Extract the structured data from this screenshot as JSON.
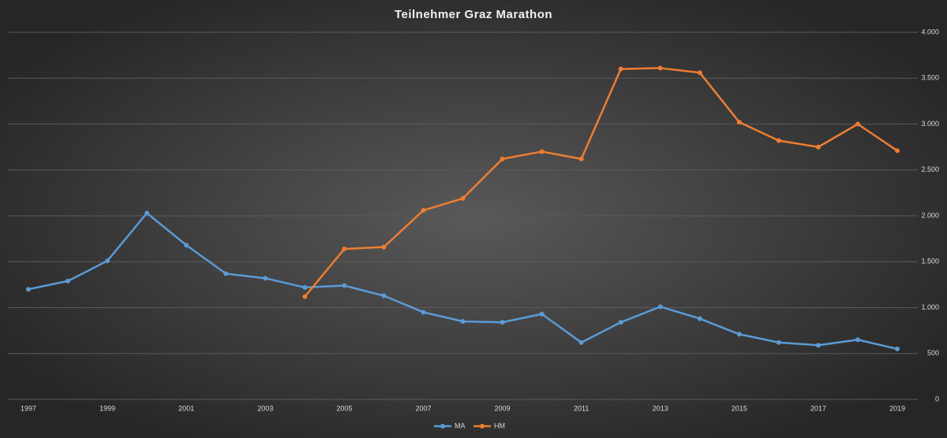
{
  "chart_data": {
    "type": "line",
    "title": "Teilnehmer  Graz  Marathon",
    "x": [
      1997,
      1998,
      1999,
      2000,
      2001,
      2002,
      2003,
      2004,
      2005,
      2006,
      2007,
      2008,
      2009,
      2010,
      2011,
      2012,
      2013,
      2014,
      2015,
      2016,
      2017,
      2018,
      2019
    ],
    "xlim": [
      1997,
      2019
    ],
    "xticks": [
      1997,
      1999,
      2001,
      2003,
      2005,
      2007,
      2009,
      2011,
      2013,
      2015,
      2017,
      2019
    ],
    "ylim": [
      0,
      4000
    ],
    "yticks": [
      0,
      500,
      {
        "value": 1000,
        "label": "1.000"
      },
      {
        "value": 1500,
        "label": "1.500"
      },
      {
        "value": 2000,
        "label": "2.000"
      },
      {
        "value": 2500,
        "label": "2.500"
      },
      {
        "value": 3000,
        "label": "3.000"
      },
      {
        "value": 3500,
        "label": "3.500"
      },
      {
        "value": 4000,
        "label": "4.000"
      }
    ],
    "grid": true,
    "legend": "bottom",
    "series": [
      {
        "name": "MA",
        "color": "#5b9bd5",
        "values": [
          1200,
          1290,
          1510,
          2030,
          1680,
          1370,
          1320,
          1220,
          1240,
          1130,
          950,
          850,
          840,
          930,
          620,
          840,
          1010,
          880,
          710,
          620,
          590,
          650,
          550
        ]
      },
      {
        "name": "HM",
        "color": "#ed7d31",
        "values": [
          null,
          null,
          null,
          null,
          null,
          null,
          null,
          1120,
          1640,
          1660,
          2060,
          2190,
          2620,
          2700,
          2620,
          3600,
          3610,
          3560,
          3020,
          2820,
          2750,
          3000,
          2710
        ]
      }
    ]
  }
}
